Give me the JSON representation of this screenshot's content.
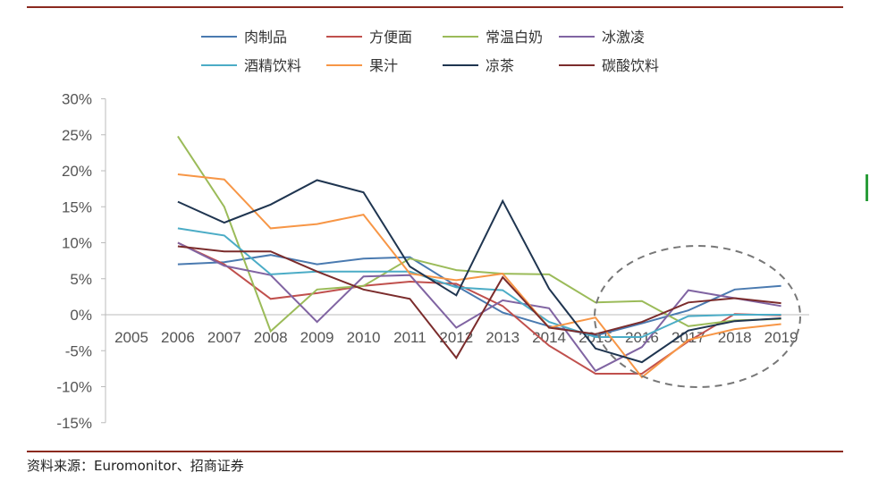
{
  "source": "资料来源：Euromonitor、招商证券",
  "chart_data": {
    "type": "line",
    "categories": [
      "2005",
      "2006",
      "2007",
      "2008",
      "2009",
      "2010",
      "2011",
      "2012",
      "2013",
      "2014",
      "2015",
      "2016",
      "2017",
      "2018",
      "2019"
    ],
    "ylim": [
      -15,
      30
    ],
    "yticks": [
      "-15%",
      "-10%",
      "-5%",
      "0%",
      "5%",
      "10%",
      "15%",
      "20%",
      "25%",
      "30%"
    ],
    "legend": "top",
    "grid": false,
    "annotation": "dashed ellipse around 2015-2019",
    "series": [
      {
        "name": "肉制品",
        "color": "#4a7ab0",
        "values": [
          null,
          7.0,
          7.3,
          8.3,
          7.0,
          7.8,
          8.0,
          4.0,
          0.3,
          -1.6,
          -2.9,
          -1.2,
          0.6,
          3.5,
          4.0
        ]
      },
      {
        "name": "方便面",
        "color": "#c0504d",
        "values": [
          null,
          10.0,
          7.0,
          2.2,
          3.0,
          4.0,
          4.6,
          4.3,
          1.2,
          -4.3,
          -8.2,
          -8.2,
          -3.7,
          0.1,
          -0.1
        ]
      },
      {
        "name": "常温白奶",
        "color": "#9bbb59",
        "values": [
          null,
          24.8,
          15.0,
          -2.3,
          3.5,
          4.0,
          7.8,
          6.2,
          5.7,
          5.6,
          1.7,
          1.9,
          -1.6,
          -0.8,
          -0.6
        ]
      },
      {
        "name": "冰激凌",
        "color": "#8064a2",
        "values": [
          null,
          10.0,
          6.8,
          5.5,
          -1.0,
          5.3,
          5.5,
          -1.8,
          2.0,
          0.9,
          -7.8,
          -4.5,
          3.4,
          2.3,
          1.2
        ]
      },
      {
        "name": "酒精饮料",
        "color": "#4bacc6",
        "values": [
          null,
          12.0,
          11.0,
          5.6,
          6.0,
          6.0,
          6.0,
          3.8,
          3.4,
          -1.0,
          -3.1,
          -3.1,
          -0.2,
          0.0,
          0.0
        ]
      },
      {
        "name": "果汁",
        "color": "#f79646",
        "values": [
          null,
          19.5,
          18.8,
          12.0,
          12.6,
          13.9,
          5.7,
          4.8,
          5.7,
          -1.8,
          -0.4,
          -8.7,
          -3.5,
          -2.0,
          -1.3
        ]
      },
      {
        "name": "凉茶",
        "color": "#1f3550",
        "values": [
          null,
          15.7,
          12.8,
          15.3,
          18.7,
          17.0,
          6.7,
          2.7,
          15.8,
          3.6,
          -4.7,
          -6.6,
          -2.2,
          -0.9,
          -0.5
        ]
      },
      {
        "name": "碳酸饮料",
        "color": "#7b2c2c",
        "values": [
          null,
          9.5,
          8.8,
          8.8,
          6.0,
          3.5,
          2.2,
          -6.0,
          5.2,
          -1.8,
          -2.7,
          -1.0,
          1.7,
          2.3,
          1.6
        ]
      }
    ]
  }
}
